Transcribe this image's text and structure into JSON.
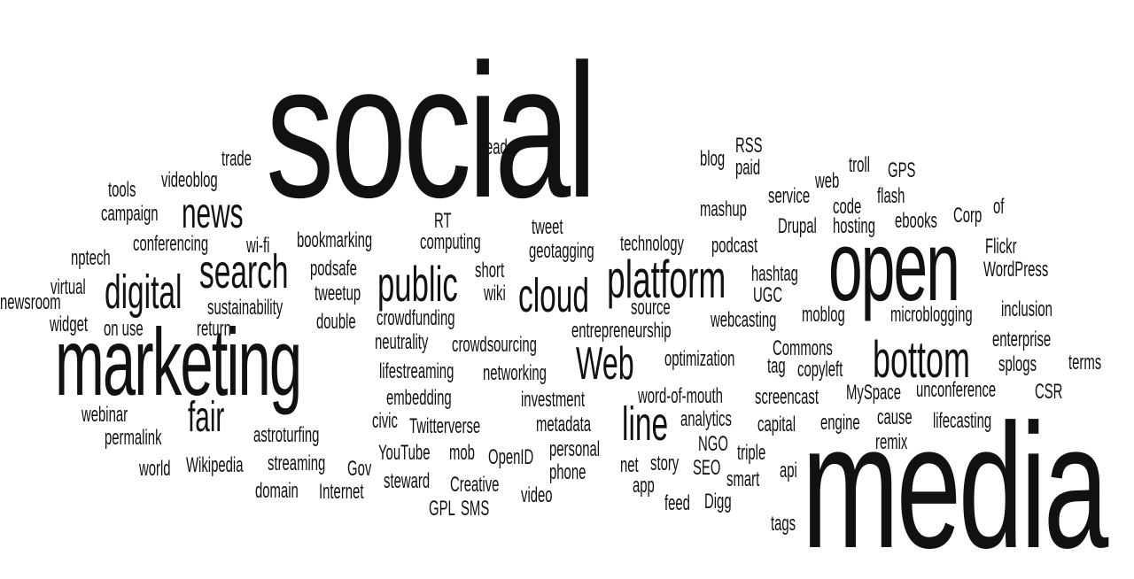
{
  "cloud": {
    "social": "social",
    "media": "media",
    "marketing": "marketing",
    "open": "open",
    "bottom": "bottom",
    "platform": "platform",
    "cloud_word": "cloud",
    "public": "public",
    "search": "search",
    "digital": "digital",
    "news": "news",
    "web": "Web",
    "line": "line",
    "fair": "fair",
    "tools": "tools",
    "videoblog": "videoblog",
    "trade": "trade",
    "campaign": "campaign",
    "nptech": "nptech",
    "conferencing": "conferencing",
    "wifi": "wi-fi",
    "bookmarking": "bookmarking",
    "computing": "computing",
    "rt": "RT",
    "reader": "reader",
    "tweet": "tweet",
    "geotagging": "geotagging",
    "technology": "technology",
    "podcast": "podcast",
    "blog": "blog",
    "rss": "RSS",
    "paid": "paid",
    "mashup": "mashup",
    "service": "service",
    "web_small": "web",
    "troll": "troll",
    "gps": "GPS",
    "code": "code",
    "flash": "flash",
    "drupal": "Drupal",
    "hosting": "hosting",
    "ebooks": "ebooks",
    "corp": "Corp",
    "of": "of",
    "flickr": "Flickr",
    "wordpress": "WordPress",
    "hashtag": "hashtag",
    "ugc": "UGC",
    "moblog": "moblog",
    "microblogging": "microblogging",
    "inclusion": "inclusion",
    "enterprise": "enterprise",
    "splogs": "splogs",
    "terms": "terms",
    "csr": "CSR",
    "unconference": "unconference",
    "myspace": "MySpace",
    "screencast": "screencast",
    "copyleft": "copyleft",
    "tag": "tag",
    "commons": "Commons",
    "optimization": "optimization",
    "webcasting": "webcasting",
    "source": "source",
    "entrepreneurship": "entrepreneurship",
    "word_of_mouth": "word-of-mouth",
    "analytics": "analytics",
    "capital": "capital",
    "engine": "engine",
    "cause": "cause",
    "lifecasting": "lifecasting",
    "remix": "remix",
    "ngo": "NGO",
    "triple": "triple",
    "story": "story",
    "net": "net",
    "seo": "SEO",
    "smart": "smart",
    "api": "api",
    "app": "app",
    "feed": "feed",
    "digg": "Digg",
    "tags": "tags",
    "short": "short",
    "wiki": "wiki",
    "podsafe": "podsafe",
    "tweetup": "tweetup",
    "crowdfunding": "crowdfunding",
    "double": "double",
    "neutrality": "neutrality",
    "crowdsourcing": "crowdsourcing",
    "lifestreaming": "lifestreaming",
    "networking": "networking",
    "embedding": "embedding",
    "investment": "investment",
    "civic": "civic",
    "twitterverse": "Twitterverse",
    "metadata": "metadata",
    "personal": "personal",
    "youtube": "YouTube",
    "mob": "mob",
    "openid": "OpenID",
    "phone": "phone",
    "steward": "steward",
    "creative": "Creative",
    "video": "video",
    "gpl": "GPL",
    "sms": "SMS",
    "gov": "Gov",
    "internet": "Internet",
    "domain": "domain",
    "streaming": "streaming",
    "wikipedia": "Wikipedia",
    "world": "world",
    "astroturfing": "astroturfing",
    "permalink": "permalink",
    "webinar": "webinar",
    "virtual": "virtual",
    "newsroom": "newsroom",
    "widget": "widget",
    "on_use": "on use",
    "return": "return",
    "sustainability": "sustainability"
  },
  "colors": {
    "background": "#ffffff",
    "text": "#111111"
  }
}
